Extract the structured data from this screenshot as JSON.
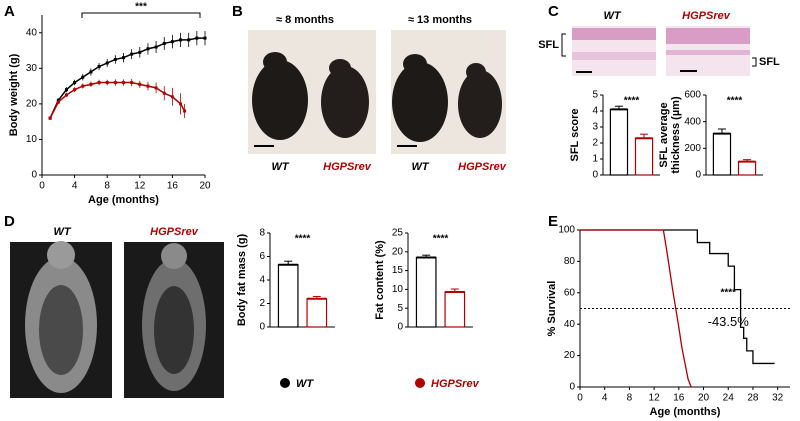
{
  "panel_labels": [
    "A",
    "B",
    "C",
    "D",
    "E"
  ],
  "legend": [
    {
      "name": "WT",
      "color": "#000000"
    },
    {
      "name": "HGPSrev",
      "color": "#b00000"
    }
  ],
  "ages": [
    "≈ 8 months",
    "≈ 13 months"
  ],
  "sfl_label": "SFL",
  "chart_data": [
    {
      "type": "line",
      "xlabel": "Age (months)",
      "ylabel": "Body weight (g)",
      "annotation": "***",
      "xlim": [
        0,
        20
      ],
      "xticks": [
        0,
        4,
        8,
        12,
        16,
        20
      ],
      "ylim": [
        0,
        45
      ],
      "yticks": [
        0,
        10,
        20,
        30,
        40
      ],
      "series": [
        {
          "color": "#000000",
          "x": [
            1,
            2,
            3,
            4,
            5,
            6,
            7,
            8,
            9,
            10,
            11,
            12,
            13,
            14,
            15,
            16,
            17,
            18,
            19,
            20
          ],
          "values": [
            16,
            21,
            24,
            26,
            27.5,
            29,
            30.5,
            31.5,
            32.5,
            33,
            34,
            34.5,
            35.5,
            36,
            37,
            37.5,
            38,
            38,
            38.5,
            38.5
          ],
          "errors": [
            0.5,
            0.6,
            0.7,
            0.8,
            0.9,
            1,
            1,
            1.1,
            1.2,
            1.3,
            1.4,
            1.5,
            1.6,
            1.7,
            1.8,
            1.9,
            2,
            2,
            2,
            2
          ]
        },
        {
          "color": "#b00000",
          "x": [
            1,
            2,
            3,
            4,
            5,
            6,
            7,
            8,
            9,
            10,
            11,
            12,
            13,
            14,
            15,
            16,
            17,
            17.5
          ],
          "values": [
            16,
            20.5,
            22.5,
            24,
            25,
            25.5,
            26,
            26,
            26,
            26,
            26,
            25.5,
            25,
            24.5,
            23,
            22,
            20,
            18
          ],
          "errors": [
            0.5,
            0.6,
            0.6,
            0.7,
            0.7,
            0.8,
            0.8,
            0.8,
            0.9,
            0.9,
            1,
            1,
            1.2,
            1.5,
            2,
            2.5,
            3,
            2
          ]
        }
      ]
    },
    {
      "type": "bar",
      "ylabel": "SFL score",
      "annotation": "****",
      "ylim": [
        0,
        5
      ],
      "yticks": [
        0,
        1,
        2,
        3,
        4,
        5
      ],
      "values": [
        4.1,
        2.3
      ],
      "errors": [
        0.2,
        0.25
      ]
    },
    {
      "type": "bar",
      "ylabel": [
        "SFL average",
        "thickness (µm)"
      ],
      "annotation": "****",
      "ylim": [
        0,
        600
      ],
      "yticks": [
        0,
        200,
        400,
        600
      ],
      "values": [
        310,
        100
      ],
      "errors": [
        35,
        15
      ]
    },
    {
      "type": "bar",
      "ylabel": "Body fat mass (g)",
      "annotation": "****",
      "ylim": [
        0,
        8
      ],
      "yticks": [
        0,
        2,
        4,
        6,
        8
      ],
      "values": [
        5.3,
        2.4
      ],
      "errors": [
        0.3,
        0.2
      ]
    },
    {
      "type": "bar",
      "ylabel": "Fat content (%)",
      "annotation": "****",
      "ylim": [
        0,
        25
      ],
      "yticks": [
        0,
        5,
        10,
        15,
        20,
        25
      ],
      "values": [
        18.5,
        9.3
      ],
      "errors": [
        0.6,
        0.8
      ]
    },
    {
      "type": "line",
      "xlabel": "Age (months)",
      "ylabel": "% Survival",
      "annotations": [
        "****",
        "-43.5%"
      ],
      "reference_line": 50,
      "xlim": [
        0,
        34
      ],
      "xticks": [
        0,
        4,
        8,
        12,
        16,
        20,
        24,
        28,
        32
      ],
      "ylim": [
        0,
        100
      ],
      "yticks": [
        0,
        20,
        40,
        60,
        80,
        100
      ],
      "series": [
        {
          "color": "#000000",
          "x": [
            0,
            19,
            19,
            21,
            21,
            24,
            24,
            25,
            25,
            26,
            26,
            26.5,
            26.5,
            27,
            27,
            28,
            28,
            30,
            30,
            31.5
          ],
          "values": [
            100,
            100,
            92,
            92,
            85,
            85,
            77,
            77,
            62,
            62,
            38,
            38,
            31,
            31,
            23,
            23,
            15,
            15,
            15,
            15
          ]
        },
        {
          "color": "#b00000",
          "x": [
            0,
            13.5,
            14,
            14.5,
            15,
            15.5,
            16,
            16.5,
            17,
            17.5,
            18
          ],
          "values": [
            100,
            100,
            88,
            75,
            62,
            50,
            38,
            25,
            15,
            5,
            0
          ]
        }
      ]
    }
  ]
}
